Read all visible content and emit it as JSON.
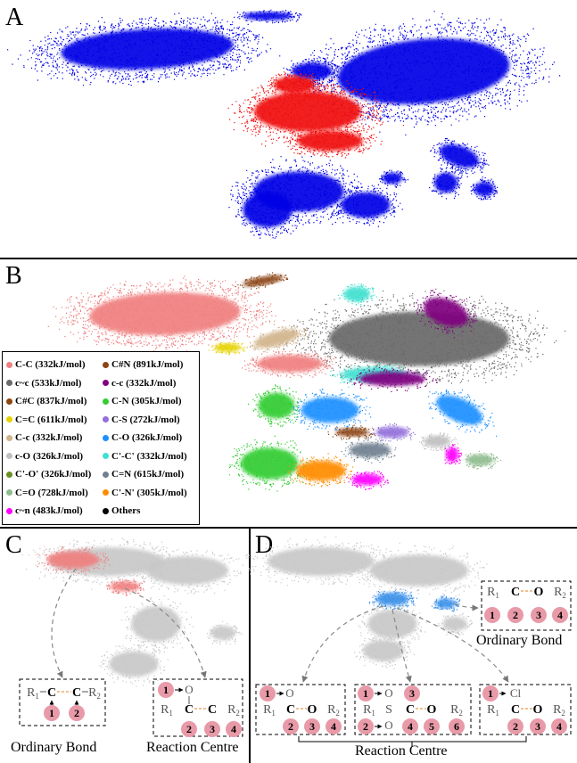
{
  "panels": {
    "a": "A",
    "b": "B",
    "c": "C",
    "d": "D"
  },
  "colors": {
    "blue": "#0000e6",
    "red": "#f01010",
    "gray": "#c8c8c8",
    "salmon": "#f08080",
    "lightblue": "#3a90e8",
    "pink": "#e89aa8"
  },
  "legend": [
    {
      "label": "C-C (332kJ/mol)",
      "color": "#f08080"
    },
    {
      "label": "C#N (891kJ/mol)",
      "color": "#8b4513"
    },
    {
      "label": "c~c (533kJ/mol)",
      "color": "#696969"
    },
    {
      "label": "c-c (332kJ/mol)",
      "color": "#800080"
    },
    {
      "label": "C#C (837kJ/mol)",
      "color": "#8b4513"
    },
    {
      "label": "C-N (305kJ/mol)",
      "color": "#32cd32"
    },
    {
      "label": "C=C (611kJ/mol)",
      "color": "#e6d200"
    },
    {
      "label": "C-S (272kJ/mol)",
      "color": "#9370db"
    },
    {
      "label": "C-c (332kJ/mol)",
      "color": "#d2b48c"
    },
    {
      "label": "C-O (326kJ/mol)",
      "color": "#1e90ff"
    },
    {
      "label": "c-O (326kJ/mol)",
      "color": "#c0c0c0"
    },
    {
      "label": "C'-C' (332kJ/mol)",
      "color": "#40e0d0"
    },
    {
      "label": "C'-O' (326kJ/mol)",
      "color": "#6b8e23"
    },
    {
      "label": "C=N (615kJ/mol)",
      "color": "#708090"
    },
    {
      "label": "C=O (728kJ/mol)",
      "color": "#8fbc8f"
    },
    {
      "label": "C'-N' (305kJ/mol)",
      "color": "#ff8c00"
    },
    {
      "label": "c~n (483kJ/mol)",
      "color": "#ff00ff"
    },
    {
      "label": "Others",
      "color": "#000000"
    }
  ],
  "captions": {
    "c_ordinary": "Ordinary  Bond",
    "c_reaction": "Reaction Centre",
    "d_ordinary": "Ordinary  Bond",
    "d_reaction": "Reaction Centre"
  },
  "chem": {
    "r1": "R",
    "r1_sub": "1",
    "r2": "R",
    "r2_sub": "2",
    "c": "C",
    "o": "O",
    "s": "S",
    "cl": "Cl",
    "n1": "1",
    "n2": "2",
    "n3": "3",
    "n4": "4",
    "n5": "5",
    "n6": "6"
  }
}
